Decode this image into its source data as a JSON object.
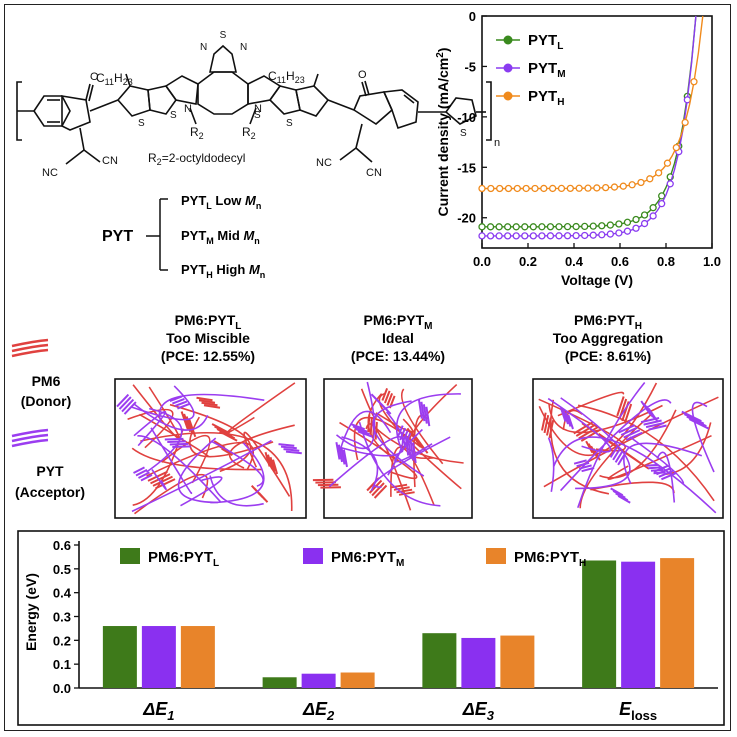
{
  "structure": {
    "sulfur": "S",
    "nitrogen": "N",
    "oxygen": "O",
    "alkyl": "C",
    "alkyl_sub1": "11",
    "alkyl_h": "H",
    "alkyl_sub2": "23",
    "r_group": "R",
    "r_sub": "2",
    "cyano": "CN",
    "nc": "NC",
    "repeat": "n",
    "r_def_a": "R",
    "r_def_sub": "2",
    "r_def_b": "=2-octyldodecyl",
    "pyt_label": "PYT",
    "variants": [
      {
        "base": "PYT",
        "sub": "L",
        "desc": "Low",
        "m": "M",
        "msub": "n"
      },
      {
        "base": "PYT",
        "sub": "M",
        "desc": "Mid",
        "m": "M",
        "msub": "n"
      },
      {
        "base": "PYT",
        "sub": "H",
        "desc": "High",
        "m": "M",
        "msub": "n"
      }
    ]
  },
  "morphology": {
    "legend": [
      {
        "line1": "PM6",
        "line2": "(Donor)",
        "color": "#e0413f"
      },
      {
        "line1": "PYT",
        "line2": "(Acceptor)",
        "color": "#9b3df0"
      }
    ],
    "panels": [
      {
        "title_base": "PM6:PYT",
        "title_sub": "L",
        "desc": "Too Miscible",
        "pce": "(PCE: 12.55%)"
      },
      {
        "title_base": "PM6:PYT",
        "title_sub": "M",
        "desc": "Ideal",
        "pce": "(PCE: 13.44%)"
      },
      {
        "title_base": "PM6:PYT",
        "title_sub": "H",
        "desc": "Too Aggregation",
        "pce": "(PCE: 8.61%)"
      }
    ]
  },
  "chart_data": [
    {
      "type": "line",
      "title": "",
      "xlabel": "Voltage (V)",
      "ylabel": "Current density (mA/cm",
      "ylabel_sup": "2",
      "ylabel_close": ")",
      "xlim": [
        0.0,
        1.0
      ],
      "ylim": [
        -23,
        0
      ],
      "xticks": [
        "0.0",
        "0.2",
        "0.4",
        "0.6",
        "0.8",
        "1.0"
      ],
      "xtick_values": [
        0.0,
        0.2,
        0.4,
        0.6,
        0.8,
        1.0
      ],
      "yticks": [
        "0",
        "-5",
        "-10",
        "-15",
        "-20"
      ],
      "ytick_values": [
        0,
        -5,
        -10,
        -15,
        -20
      ],
      "legend_position": "top-left",
      "series": [
        {
          "name": "PYT",
          "sub": "L",
          "color": "#3a8a1e",
          "jsc": -20.9,
          "voc": 0.93,
          "n": 1.8
        },
        {
          "name": "PYT",
          "sub": "M",
          "color": "#8a3cf0",
          "jsc": -21.8,
          "voc": 0.93,
          "n": 1.6
        },
        {
          "name": "PYT",
          "sub": "H",
          "color": "#f08a1c",
          "jsc": -17.1,
          "voc": 0.96,
          "n": 3.2
        }
      ]
    },
    {
      "type": "bar",
      "title": "",
      "xlabel": "",
      "ylabel": "Energy (eV)",
      "ylim": [
        0,
        0.6
      ],
      "yticks": [
        "0.0",
        "0.1",
        "0.2",
        "0.3",
        "0.4",
        "0.5",
        "0.6"
      ],
      "ytick_values": [
        0.0,
        0.1,
        0.2,
        0.3,
        0.4,
        0.5,
        0.6
      ],
      "categories": [
        {
          "delta": "Δ",
          "main": "E",
          "sub": "1"
        },
        {
          "delta": "Δ",
          "main": "E",
          "sub": "2"
        },
        {
          "delta": "Δ",
          "main": "E",
          "sub": "3"
        },
        {
          "delta": "",
          "main": "E",
          "sub": "loss"
        }
      ],
      "legend_position": "top",
      "series": [
        {
          "name": "PM6:PYT",
          "sub": "L",
          "color": "#3e7a1a",
          "values": [
            0.26,
            0.045,
            0.23,
            0.535
          ]
        },
        {
          "name": "PM6:PYT",
          "sub": "M",
          "color": "#8a30f0",
          "values": [
            0.26,
            0.06,
            0.21,
            0.53
          ]
        },
        {
          "name": "PM6:PYT",
          "sub": "H",
          "color": "#e8842a",
          "values": [
            0.26,
            0.065,
            0.22,
            0.545
          ]
        }
      ]
    }
  ]
}
